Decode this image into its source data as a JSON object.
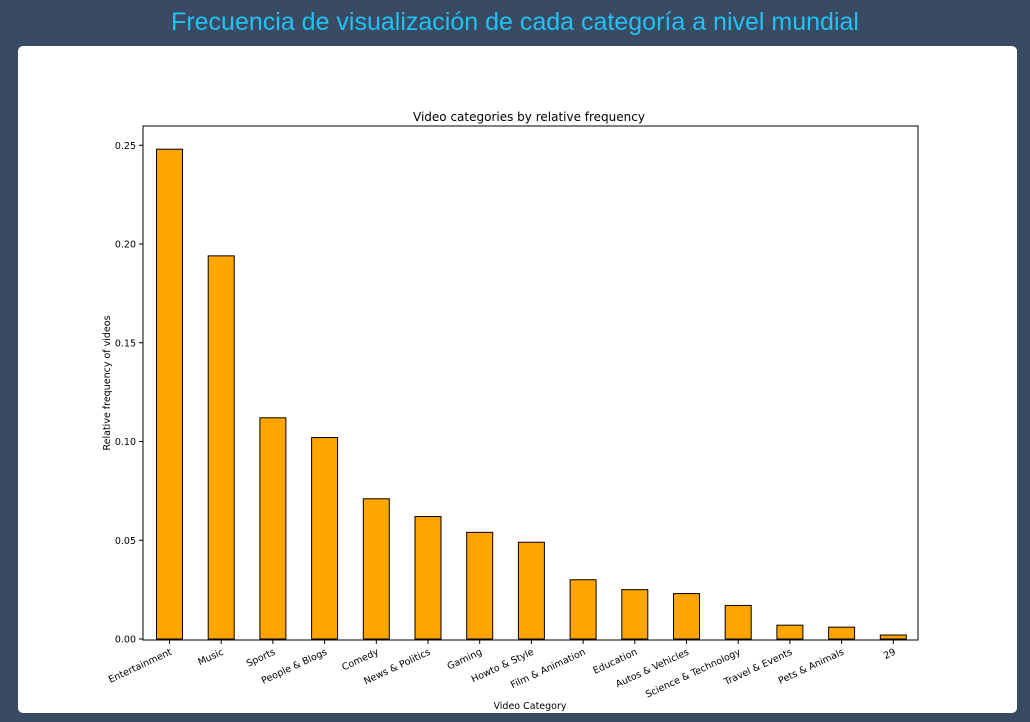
{
  "page": {
    "title": "Frecuencia de visualización de cada categoría a nivel mundial"
  },
  "colors": {
    "background": "#3b4a63",
    "title": "#1ec2f3",
    "card": "#ffffff",
    "bar_fill": "#ffa500",
    "bar_edge": "#000000"
  },
  "chart_data": {
    "type": "bar",
    "title": "Video categories by relative frequency",
    "xlabel": "Video Category",
    "ylabel": "Relative frequency of videos",
    "categories": [
      "Entertainment",
      "Music",
      "Sports",
      "People & Blogs",
      "Comedy",
      "News & Politics",
      "Gaming",
      "Howto & Style",
      "Film & Animation",
      "Education",
      "Autos & Vehicles",
      "Science & Technology",
      "Travel & Events",
      "Pets & Animals",
      "29"
    ],
    "values": [
      0.248,
      0.194,
      0.112,
      0.102,
      0.071,
      0.062,
      0.054,
      0.049,
      0.03,
      0.025,
      0.023,
      0.017,
      0.007,
      0.006,
      0.002
    ],
    "yticks": [
      0.0,
      0.05,
      0.1,
      0.15,
      0.2,
      0.25
    ],
    "ytick_labels": [
      "0.00",
      "0.05",
      "0.10",
      "0.15",
      "0.20",
      "0.25"
    ],
    "ylim": [
      0,
      0.26
    ],
    "grid": false,
    "legend": "none"
  }
}
